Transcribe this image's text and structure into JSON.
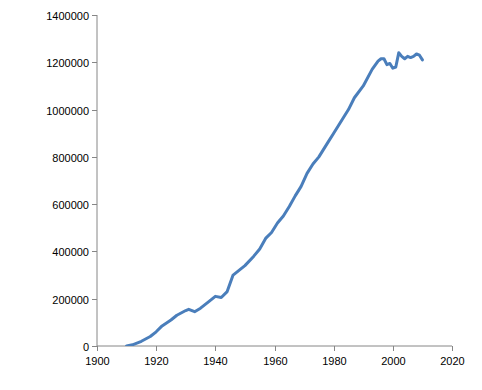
{
  "chart_data": {
    "type": "line",
    "x": [
      1910,
      1912,
      1915,
      1918,
      1920,
      1922,
      1925,
      1927,
      1930,
      1931,
      1933,
      1935,
      1938,
      1940,
      1942,
      1944,
      1946,
      1948,
      1950,
      1953,
      1955,
      1957,
      1959,
      1961,
      1963,
      1965,
      1967,
      1969,
      1971,
      1973,
      1975,
      1978,
      1980,
      1983,
      1985,
      1987,
      1990,
      1993,
      1995,
      1996,
      1997,
      1998,
      1999,
      2000,
      2001,
      2002,
      2003,
      2004,
      2005,
      2006,
      2007,
      2008,
      2009,
      2010
    ],
    "values": [
      0,
      5000,
      20000,
      40000,
      60000,
      85000,
      110000,
      130000,
      150000,
      155000,
      145000,
      160000,
      190000,
      210000,
      205000,
      230000,
      300000,
      320000,
      340000,
      380000,
      410000,
      455000,
      480000,
      520000,
      550000,
      590000,
      635000,
      675000,
      730000,
      770000,
      800000,
      860000,
      900000,
      960000,
      1000000,
      1050000,
      1100000,
      1170000,
      1205000,
      1215000,
      1215000,
      1190000,
      1195000,
      1175000,
      1180000,
      1240000,
      1225000,
      1215000,
      1225000,
      1220000,
      1225000,
      1235000,
      1230000,
      1210000
    ],
    "color": "#4a7ebb",
    "xlim": [
      1900,
      2020
    ],
    "xticks": [
      1900,
      1920,
      1940,
      1960,
      1980,
      2000,
      2020
    ],
    "ylim": [
      0,
      1400000
    ],
    "yticks": [
      0,
      200000,
      400000,
      600000,
      800000,
      1000000,
      1200000,
      1400000
    ],
    "grid": false
  }
}
